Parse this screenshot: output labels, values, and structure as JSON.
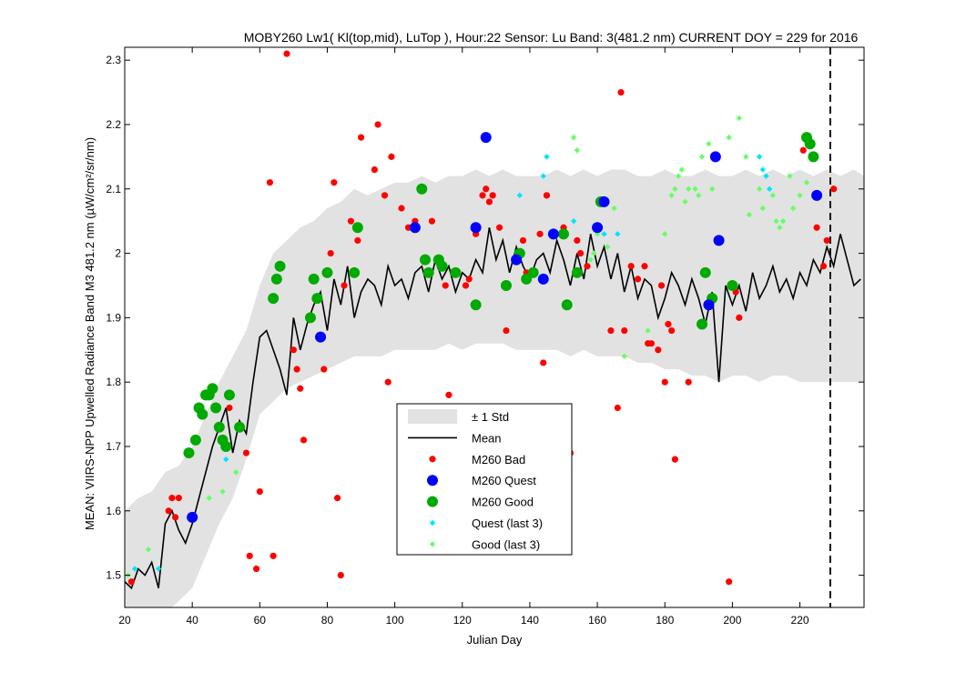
{
  "chart_data": {
    "type": "scatter",
    "title": "MOBY260   Lw1( Kl(top,mid), LuTop ),   Hour:22 Sensor: Lu Band: 3(481.2 nm)   CURRENT DOY = 229 for 2016",
    "xlabel": "Julian Day",
    "ylabel": "MEAN: VIIRS-NPP Upwelled Radiance Band M3 481.2 nm (µW/cm²/sr/nm)",
    "xlim": [
      20,
      239
    ],
    "ylim": [
      1.45,
      2.32
    ],
    "xticks": [
      20,
      40,
      60,
      80,
      100,
      120,
      140,
      160,
      180,
      200,
      220
    ],
    "xtick_labels": [
      "20",
      "40",
      "60",
      "80",
      "100",
      "120",
      "140",
      "160",
      "180",
      "200",
      "220"
    ],
    "yticks": [
      1.5,
      1.6,
      1.7,
      1.8,
      1.9,
      2.0,
      2.1,
      2.2,
      2.3
    ],
    "ytick_labels": [
      "1.5",
      "1.6",
      "1.7",
      "1.8",
      "1.9",
      "2",
      "2.1",
      "2.2",
      "2.3"
    ],
    "grid": false,
    "legend_position": "lower-center",
    "current_day": 229,
    "colors": {
      "std": "#e2e2e2",
      "mean": "#000000",
      "bad": "#ff0000",
      "quest": "#0000ff",
      "good": "#00aa00",
      "quest_last3": "#00e5ff",
      "good_last3": "#66ff66"
    },
    "legend": [
      {
        "key": "std",
        "label": "± 1 Std"
      },
      {
        "key": "mean",
        "label": "Mean"
      },
      {
        "key": "bad",
        "label": "M260 Bad"
      },
      {
        "key": "quest",
        "label": "M260 Quest"
      },
      {
        "key": "good",
        "label": "M260 Good"
      },
      {
        "key": "quest_last3",
        "label": "Quest (last 3)"
      },
      {
        "key": "good_last3",
        "label": "Good (last 3)"
      }
    ],
    "mean": {
      "x": [
        20,
        22,
        24,
        26,
        28,
        30,
        32,
        34,
        36,
        38,
        40,
        42,
        44,
        46,
        48,
        50,
        52,
        54,
        56,
        58,
        60,
        62,
        64,
        66,
        68,
        70,
        72,
        74,
        76,
        78,
        80,
        82,
        84,
        86,
        88,
        90,
        92,
        94,
        96,
        98,
        100,
        102,
        104,
        106,
        108,
        110,
        112,
        114,
        116,
        118,
        120,
        122,
        124,
        126,
        128,
        130,
        132,
        134,
        136,
        138,
        140,
        142,
        144,
        146,
        148,
        150,
        152,
        154,
        156,
        158,
        160,
        162,
        164,
        166,
        168,
        170,
        172,
        174,
        176,
        178,
        180,
        182,
        184,
        186,
        188,
        190,
        192,
        194,
        196,
        198,
        200,
        202,
        204,
        206,
        208,
        210,
        212,
        214,
        216,
        218,
        220,
        222,
        224,
        226,
        228,
        230,
        232,
        234,
        236,
        238
      ],
      "y": [
        1.49,
        1.48,
        1.51,
        1.5,
        1.52,
        1.48,
        1.58,
        1.6,
        1.57,
        1.55,
        1.58,
        1.62,
        1.66,
        1.7,
        1.73,
        1.76,
        1.69,
        1.74,
        1.72,
        1.8,
        1.87,
        1.88,
        1.85,
        1.82,
        1.78,
        1.9,
        1.85,
        1.89,
        1.92,
        1.94,
        1.88,
        1.96,
        1.92,
        1.98,
        1.9,
        1.94,
        1.96,
        1.95,
        1.92,
        1.98,
        1.95,
        1.96,
        1.93,
        1.97,
        1.98,
        1.94,
        1.99,
        1.96,
        1.98,
        1.94,
        1.97,
        1.96,
        1.99,
        1.97,
        2.04,
        1.99,
        2.02,
        1.97,
        2.01,
        1.98,
        1.96,
        1.99,
        2.0,
        1.97,
        2.02,
        1.99,
        1.95,
        2.0,
        1.96,
        2.03,
        1.98,
        2.01,
        1.96,
        2.0,
        1.94,
        1.98,
        1.93,
        1.96,
        1.95,
        1.9,
        1.93,
        1.97,
        1.95,
        1.92,
        1.96,
        1.93,
        1.89,
        1.94,
        1.8,
        1.95,
        1.92,
        1.95,
        1.91,
        1.97,
        1.93,
        1.95,
        1.98,
        1.94,
        1.96,
        1.93,
        1.97,
        1.95,
        1.99,
        1.97,
        2.01,
        1.98,
        2.03,
        1.99,
        1.95,
        1.96
      ]
    },
    "std": {
      "x": [
        20,
        24,
        28,
        32,
        36,
        40,
        44,
        48,
        52,
        56,
        60,
        64,
        68,
        72,
        76,
        80,
        84,
        88,
        92,
        96,
        100,
        104,
        108,
        112,
        116,
        120,
        124,
        128,
        132,
        136,
        140,
        144,
        148,
        152,
        156,
        160,
        164,
        168,
        172,
        176,
        180,
        184,
        188,
        192,
        196,
        200,
        204,
        208,
        212,
        216,
        220,
        224,
        228,
        232,
        236,
        239
      ],
      "upper": [
        1.6,
        1.62,
        1.63,
        1.66,
        1.67,
        1.7,
        1.75,
        1.8,
        1.84,
        1.88,
        1.95,
        2.0,
        2.02,
        2.04,
        2.05,
        2.07,
        2.08,
        2.1,
        2.09,
        2.1,
        2.11,
        2.11,
        2.12,
        2.11,
        2.12,
        2.12,
        2.13,
        2.12,
        2.13,
        2.12,
        2.12,
        2.12,
        2.13,
        2.12,
        2.13,
        2.12,
        2.13,
        2.13,
        2.12,
        2.12,
        2.13,
        2.12,
        2.12,
        2.13,
        2.12,
        2.12,
        2.13,
        2.12,
        2.13,
        2.12,
        2.13,
        2.12,
        2.13,
        2.12,
        2.13,
        2.12
      ],
      "lower": [
        1.4,
        1.4,
        1.41,
        1.44,
        1.46,
        1.48,
        1.53,
        1.58,
        1.62,
        1.68,
        1.75,
        1.77,
        1.79,
        1.8,
        1.81,
        1.82,
        1.83,
        1.84,
        1.84,
        1.84,
        1.85,
        1.85,
        1.85,
        1.85,
        1.86,
        1.85,
        1.86,
        1.86,
        1.86,
        1.85,
        1.85,
        1.85,
        1.85,
        1.84,
        1.85,
        1.84,
        1.84,
        1.84,
        1.83,
        1.83,
        1.82,
        1.82,
        1.81,
        1.81,
        1.8,
        1.81,
        1.81,
        1.8,
        1.81,
        1.81,
        1.8,
        1.8,
        1.8,
        1.8,
        1.8,
        1.8
      ]
    },
    "series": [
      {
        "key": "bad",
        "name": "M260 Bad",
        "points": [
          [
            22,
            1.49
          ],
          [
            33,
            1.6
          ],
          [
            34,
            1.62
          ],
          [
            35,
            1.59
          ],
          [
            36,
            1.62
          ],
          [
            51,
            1.76
          ],
          [
            56,
            1.69
          ],
          [
            57,
            1.53
          ],
          [
            59,
            1.51
          ],
          [
            60,
            1.63
          ],
          [
            63,
            2.11
          ],
          [
            64,
            1.53
          ],
          [
            68,
            2.31
          ],
          [
            70,
            1.85
          ],
          [
            71,
            1.82
          ],
          [
            72,
            1.79
          ],
          [
            73,
            1.71
          ],
          [
            79,
            1.82
          ],
          [
            81,
            2.0
          ],
          [
            82,
            2.11
          ],
          [
            83,
            1.62
          ],
          [
            84,
            1.5
          ],
          [
            85,
            1.95
          ],
          [
            87,
            2.05
          ],
          [
            89,
            2.02
          ],
          [
            90,
            2.18
          ],
          [
            94,
            2.13
          ],
          [
            95,
            2.2
          ],
          [
            97,
            2.09
          ],
          [
            98,
            1.8
          ],
          [
            99,
            2.15
          ],
          [
            102,
            2.07
          ],
          [
            104,
            2.04
          ],
          [
            106,
            2.05
          ],
          [
            111,
            2.05
          ],
          [
            115,
            1.95
          ],
          [
            116,
            1.78
          ],
          [
            121,
            1.95
          ],
          [
            122,
            1.96
          ],
          [
            124,
            2.03
          ],
          [
            126,
            2.09
          ],
          [
            127,
            2.1
          ],
          [
            128,
            2.08
          ],
          [
            129,
            2.09
          ],
          [
            131,
            2.04
          ],
          [
            133,
            1.88
          ],
          [
            138,
            2.02
          ],
          [
            139,
            1.97
          ],
          [
            143,
            2.03
          ],
          [
            144,
            1.83
          ],
          [
            145,
            2.09
          ],
          [
            150,
            2.04
          ],
          [
            152,
            1.69
          ],
          [
            154,
            2.02
          ],
          [
            155,
            2.0
          ],
          [
            157,
            1.98
          ],
          [
            164,
            1.88
          ],
          [
            166,
            1.76
          ],
          [
            167,
            2.25
          ],
          [
            168,
            1.88
          ],
          [
            170,
            1.98
          ],
          [
            172,
            1.96
          ],
          [
            174,
            1.98
          ],
          [
            175,
            1.86
          ],
          [
            176,
            1.86
          ],
          [
            178,
            1.85
          ],
          [
            179,
            1.95
          ],
          [
            180,
            1.8
          ],
          [
            181,
            1.89
          ],
          [
            182,
            1.88
          ],
          [
            183,
            1.68
          ],
          [
            187,
            1.8
          ],
          [
            199,
            1.49
          ],
          [
            201,
            1.94
          ],
          [
            202,
            1.9
          ],
          [
            221,
            2.16
          ],
          [
            225,
            2.04
          ],
          [
            227,
            1.98
          ],
          [
            228,
            2.02
          ],
          [
            230,
            2.1
          ]
        ]
      },
      {
        "key": "quest",
        "name": "M260 Quest",
        "points": [
          [
            40,
            1.59
          ],
          [
            78,
            1.87
          ],
          [
            106,
            2.04
          ],
          [
            124,
            2.04
          ],
          [
            127,
            2.18
          ],
          [
            136,
            1.99
          ],
          [
            144,
            1.96
          ],
          [
            147,
            2.03
          ],
          [
            160,
            2.04
          ],
          [
            162,
            2.08
          ],
          [
            193,
            1.92
          ],
          [
            195,
            2.15
          ],
          [
            196,
            2.02
          ],
          [
            225,
            2.09
          ]
        ]
      },
      {
        "key": "good",
        "name": "M260 Good",
        "points": [
          [
            39,
            1.69
          ],
          [
            41,
            1.71
          ],
          [
            42,
            1.76
          ],
          [
            43,
            1.75
          ],
          [
            44,
            1.78
          ],
          [
            45,
            1.78
          ],
          [
            46,
            1.79
          ],
          [
            47,
            1.76
          ],
          [
            48,
            1.73
          ],
          [
            49,
            1.71
          ],
          [
            50,
            1.7
          ],
          [
            51,
            1.78
          ],
          [
            54,
            1.73
          ],
          [
            64,
            1.93
          ],
          [
            65,
            1.96
          ],
          [
            66,
            1.98
          ],
          [
            75,
            1.9
          ],
          [
            76,
            1.96
          ],
          [
            77,
            1.93
          ],
          [
            80,
            1.97
          ],
          [
            88,
            1.97
          ],
          [
            89,
            2.04
          ],
          [
            108,
            2.1
          ],
          [
            109,
            1.99
          ],
          [
            110,
            1.97
          ],
          [
            113,
            1.99
          ],
          [
            114,
            1.98
          ],
          [
            118,
            1.97
          ],
          [
            124,
            1.92
          ],
          [
            133,
            1.95
          ],
          [
            137,
            2.0
          ],
          [
            139,
            1.96
          ],
          [
            141,
            1.97
          ],
          [
            150,
            2.03
          ],
          [
            151,
            1.92
          ],
          [
            154,
            1.97
          ],
          [
            161,
            2.08
          ],
          [
            191,
            1.89
          ],
          [
            192,
            1.97
          ],
          [
            194,
            1.93
          ],
          [
            200,
            1.95
          ],
          [
            222,
            2.18
          ],
          [
            223,
            2.17
          ],
          [
            224,
            2.15
          ]
        ]
      },
      {
        "key": "quest_last3",
        "name": "Quest (last 3)",
        "points": [
          [
            23,
            1.51
          ],
          [
            30,
            1.51
          ],
          [
            39,
            1.59
          ],
          [
            50,
            1.68
          ],
          [
            137,
            2.09
          ],
          [
            144,
            2.12
          ],
          [
            145,
            2.15
          ],
          [
            153,
            2.05
          ],
          [
            162,
            2.03
          ],
          [
            166,
            2.03
          ],
          [
            208,
            2.15
          ],
          [
            209,
            2.13
          ],
          [
            210,
            2.12
          ],
          [
            211,
            2.1
          ]
        ]
      },
      {
        "key": "good_last3",
        "name": "Good (last 3)",
        "points": [
          [
            21,
            1.5
          ],
          [
            27,
            1.54
          ],
          [
            45,
            1.62
          ],
          [
            49,
            1.63
          ],
          [
            53,
            1.66
          ],
          [
            153,
            2.18
          ],
          [
            154,
            2.16
          ],
          [
            158,
            1.99
          ],
          [
            159,
            2.0
          ],
          [
            160,
            2.03
          ],
          [
            163,
            2.01
          ],
          [
            165,
            2.07
          ],
          [
            168,
            1.84
          ],
          [
            175,
            1.88
          ],
          [
            180,
            2.03
          ],
          [
            182,
            2.09
          ],
          [
            183,
            2.1
          ],
          [
            184,
            2.12
          ],
          [
            185,
            2.13
          ],
          [
            186,
            2.08
          ],
          [
            187,
            2.1
          ],
          [
            189,
            2.1
          ],
          [
            190,
            2.09
          ],
          [
            191,
            2.15
          ],
          [
            193,
            2.17
          ],
          [
            194,
            2.1
          ],
          [
            199,
            2.18
          ],
          [
            202,
            2.21
          ],
          [
            204,
            2.15
          ],
          [
            205,
            2.06
          ],
          [
            208,
            2.1
          ],
          [
            209,
            2.07
          ],
          [
            212,
            2.09
          ],
          [
            213,
            2.05
          ],
          [
            214,
            2.04
          ],
          [
            215,
            2.05
          ],
          [
            217,
            2.12
          ],
          [
            218,
            2.07
          ],
          [
            220,
            2.09
          ],
          [
            222,
            2.11
          ]
        ]
      }
    ]
  }
}
